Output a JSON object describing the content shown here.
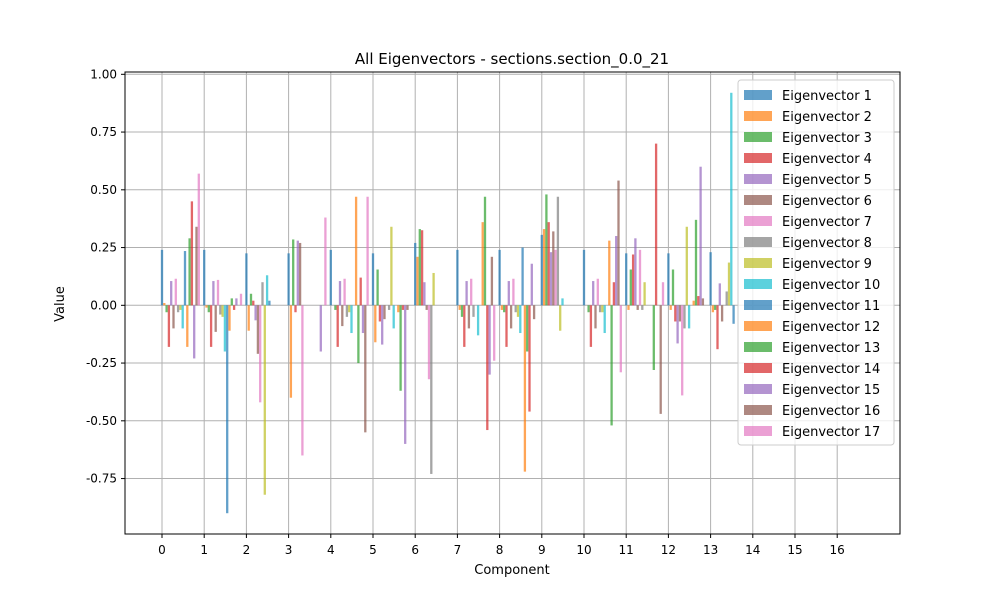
{
  "chart_data": {
    "type": "bar",
    "title": "All Eigenvectors - sections.section_0.0_21",
    "xlabel": "Component",
    "ylabel": "Value",
    "ylim": [
      -0.99,
      1.01
    ],
    "yticks": [
      "1.00",
      "0.75",
      "0.50",
      "0.25",
      "0.00",
      "-0.25",
      "-0.50",
      "-0.75"
    ],
    "ytick_values": [
      1.0,
      0.75,
      0.5,
      0.25,
      0.0,
      -0.25,
      -0.5,
      -0.75
    ],
    "categories": [
      "0",
      "1",
      "2",
      "3",
      "4",
      "5",
      "6",
      "7",
      "8",
      "9",
      "10",
      "11",
      "12",
      "13",
      "14",
      "15",
      "16"
    ],
    "grid": true,
    "legend_position": "top-right",
    "series": [
      {
        "name": "Eigenvector 1",
        "color": "#1f77b4",
        "values": [
          0.24,
          0.24,
          0.225,
          0.225,
          0.24,
          0.225,
          0.27,
          0.24,
          0.24,
          0.305,
          0.24,
          0.225,
          0.225,
          0.23,
          0.0,
          0.0,
          0.0
        ]
      },
      {
        "name": "Eigenvector 2",
        "color": "#ff7f0e",
        "values": [
          0.01,
          -0.01,
          -0.11,
          -0.4,
          0.0,
          -0.16,
          0.21,
          -0.02,
          -0.02,
          0.33,
          0.0,
          -0.02,
          -0.02,
          -0.03,
          0.0,
          0.0,
          0.0
        ]
      },
      {
        "name": "Eigenvector 3",
        "color": "#2ca02c",
        "values": [
          -0.03,
          -0.03,
          0.05,
          0.285,
          -0.02,
          0.155,
          0.33,
          -0.05,
          -0.03,
          0.48,
          -0.03,
          0.155,
          0.155,
          -0.02,
          0.0,
          0.0,
          0.0
        ]
      },
      {
        "name": "Eigenvector 4",
        "color": "#d62728",
        "values": [
          -0.18,
          -0.18,
          0.02,
          -0.03,
          -0.18,
          -0.07,
          0.325,
          -0.18,
          -0.18,
          0.36,
          -0.18,
          0.22,
          -0.07,
          -0.19,
          0.0,
          0.0,
          0.0
        ]
      },
      {
        "name": "Eigenvector 5",
        "color": "#9467bd",
        "values": [
          0.105,
          0.105,
          -0.065,
          0.28,
          0.105,
          -0.17,
          0.1,
          0.105,
          0.105,
          0.23,
          0.105,
          0.29,
          -0.165,
          0.095,
          0.0,
          0.0,
          0.0
        ]
      },
      {
        "name": "Eigenvector 6",
        "color": "#8c564b",
        "values": [
          -0.1,
          -0.115,
          -0.21,
          0.27,
          -0.09,
          -0.06,
          -0.02,
          -0.1,
          -0.1,
          0.32,
          -0.1,
          -0.02,
          -0.07,
          -0.07,
          0.0,
          0.0,
          0.0
        ]
      },
      {
        "name": "Eigenvector 7",
        "color": "#e377c2",
        "values": [
          0.115,
          0.11,
          -0.42,
          -0.65,
          0.115,
          0.0,
          -0.32,
          0.115,
          0.115,
          0.24,
          0.115,
          0.24,
          -0.39,
          0.0,
          0.0,
          0.0,
          0.0
        ]
      },
      {
        "name": "Eigenvector 8",
        "color": "#7f7f7f",
        "values": [
          -0.03,
          -0.04,
          0.1,
          0.0,
          -0.05,
          -0.02,
          -0.73,
          -0.05,
          -0.03,
          0.47,
          -0.03,
          -0.02,
          -0.1,
          0.06,
          0.0,
          0.0,
          0.0
        ]
      },
      {
        "name": "Eigenvector 9",
        "color": "#bcbd22",
        "values": [
          -0.02,
          -0.05,
          -0.82,
          0.0,
          -0.03,
          0.34,
          0.14,
          0.0,
          -0.05,
          -0.11,
          -0.03,
          0.1,
          0.34,
          0.185,
          0.0,
          0.0,
          0.0
        ]
      },
      {
        "name": "Eigenvector 10",
        "color": "#17becf",
        "values": [
          -0.1,
          -0.2,
          0.13,
          0.0,
          -0.12,
          -0.1,
          0.0,
          -0.13,
          -0.12,
          0.03,
          -0.12,
          0.0,
          -0.1,
          0.92,
          0.0,
          0.0,
          0.0
        ]
      },
      {
        "name": "Eigenvector 11",
        "color": "#1f77b4",
        "values": [
          0.235,
          -0.9,
          0.02,
          0.0,
          0.0,
          0.0,
          0.0,
          0.0,
          0.25,
          0.0,
          0.0,
          0.0,
          0.0,
          -0.08,
          0.0,
          0.0,
          0.0
        ]
      },
      {
        "name": "Eigenvector 12",
        "color": "#ff7f0e",
        "values": [
          -0.18,
          -0.11,
          0.0,
          0.0,
          0.47,
          -0.03,
          0.0,
          0.36,
          -0.72,
          0.0,
          0.28,
          0.0,
          0.02,
          0.0,
          0.0,
          0.0,
          0.0
        ]
      },
      {
        "name": "Eigenvector 13",
        "color": "#2ca02c",
        "values": [
          0.29,
          0.03,
          0.0,
          0.0,
          -0.25,
          -0.37,
          0.0,
          0.47,
          -0.2,
          0.0,
          -0.52,
          -0.28,
          0.37,
          0.0,
          0.0,
          0.0,
          0.0
        ]
      },
      {
        "name": "Eigenvector 14",
        "color": "#d62728",
        "values": [
          0.45,
          -0.02,
          0.0,
          0.0,
          0.12,
          -0.02,
          0.0,
          -0.54,
          -0.46,
          0.0,
          0.1,
          0.7,
          0.04,
          0.0,
          0.0,
          0.0,
          0.0
        ]
      },
      {
        "name": "Eigenvector 15",
        "color": "#9467bd",
        "values": [
          -0.23,
          0.03,
          0.0,
          -0.2,
          -0.12,
          -0.6,
          0.0,
          -0.3,
          0.18,
          0.0,
          0.3,
          0.0,
          0.6,
          0.0,
          0.0,
          0.0,
          0.0
        ]
      },
      {
        "name": "Eigenvector 16",
        "color": "#8c564b",
        "values": [
          0.34,
          0.0,
          0.0,
          0.0,
          -0.55,
          -0.02,
          0.0,
          0.21,
          -0.06,
          0.0,
          0.54,
          -0.47,
          0.03,
          0.0,
          0.0,
          0.0,
          0.0
        ]
      },
      {
        "name": "Eigenvector 17",
        "color": "#e377c2",
        "values": [
          0.57,
          0.05,
          0.0,
          0.38,
          0.47,
          0.0,
          0.0,
          -0.24,
          0.0,
          0.0,
          -0.29,
          0.1,
          0.0,
          0.0,
          0.0,
          0.0,
          0.0
        ]
      }
    ]
  }
}
